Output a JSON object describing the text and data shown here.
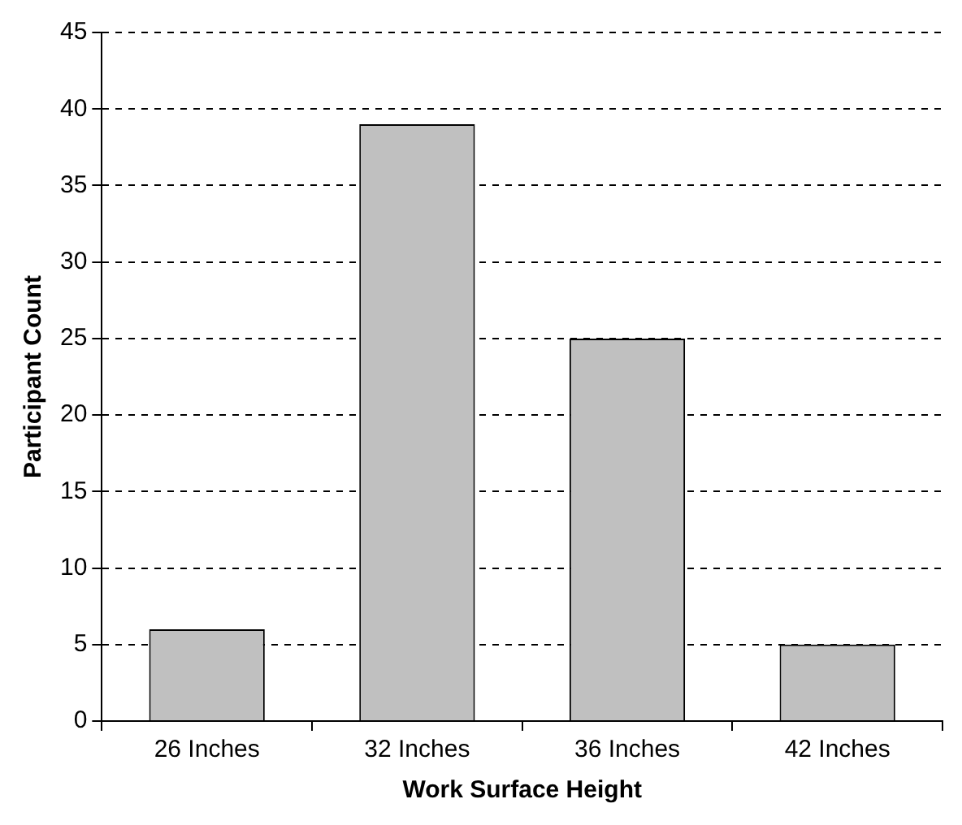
{
  "chart_data": {
    "type": "bar",
    "xlabel": "Work Surface Height",
    "ylabel": "Participant Count",
    "categories": [
      "26 Inches",
      "32 Inches",
      "36 Inches",
      "42 Inches"
    ],
    "values": [
      6,
      39,
      25,
      5
    ],
    "color": "#c0c0c0",
    "ylim": [
      0,
      45
    ],
    "yticks": [
      0,
      5,
      10,
      15,
      20,
      25,
      30,
      35,
      40,
      45
    ],
    "grid": "y",
    "legend": false
  }
}
